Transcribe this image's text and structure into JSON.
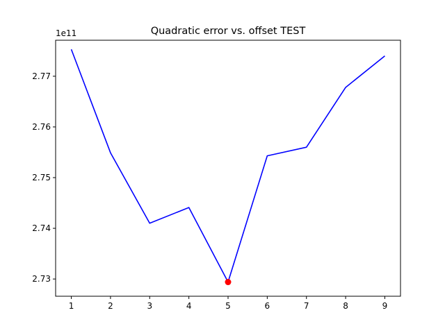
{
  "chart_data": {
    "type": "line",
    "title": "Quadratic error vs. offset TEST",
    "xlabel": "",
    "ylabel": "",
    "y_offset_label": "1e11",
    "x": [
      1,
      2,
      3,
      4,
      5,
      6,
      7,
      8,
      9
    ],
    "y": [
      2.7753,
      2.7549,
      2.741,
      2.7441,
      2.7294,
      2.7543,
      2.756,
      2.7678,
      2.774
    ],
    "y_multiplier": 100000000000.0,
    "xlim": [
      0.6,
      9.4
    ],
    "ylim": [
      2.7266,
      2.7771
    ],
    "x_ticks": [
      1,
      2,
      3,
      4,
      5,
      6,
      7,
      8,
      9
    ],
    "x_tick_labels": [
      "1",
      "2",
      "3",
      "4",
      "5",
      "6",
      "7",
      "8",
      "9"
    ],
    "y_ticks": [
      2.73,
      2.74,
      2.75,
      2.76,
      2.77
    ],
    "y_tick_labels": [
      "2.73",
      "2.74",
      "2.75",
      "2.76",
      "2.77"
    ],
    "line_color": "#0000ff",
    "highlight_point": {
      "x": 5,
      "y": 2.7294,
      "color": "#ff0000"
    },
    "grid": false,
    "legend": "none"
  }
}
